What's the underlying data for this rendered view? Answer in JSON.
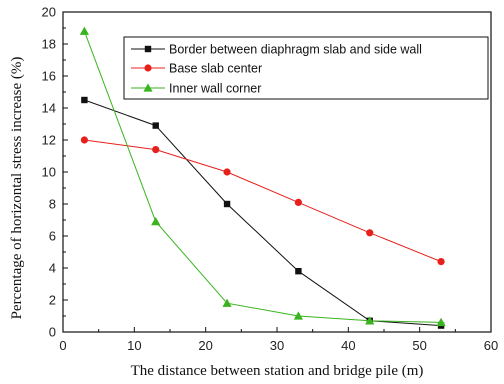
{
  "chart_data": {
    "type": "line",
    "xlabel": "The distance between station and bridge pile (m)",
    "ylabel": "Percentage of horizontal stress increase (%)",
    "xlim": [
      0,
      60
    ],
    "ylim": [
      0,
      20
    ],
    "xticks": [
      0,
      10,
      20,
      30,
      40,
      50,
      60
    ],
    "yticks": [
      0,
      2,
      4,
      6,
      8,
      10,
      12,
      14,
      16,
      18,
      20
    ],
    "grid": false,
    "legend_position": "top-right",
    "series": [
      {
        "name": "Border between diaphragm slab and side wall",
        "color": "#111111",
        "marker": "square",
        "x": [
          3,
          13,
          23,
          33,
          43,
          53
        ],
        "y": [
          14.5,
          12.9,
          8.0,
          3.8,
          0.7,
          0.4
        ]
      },
      {
        "name": "Base slab center",
        "color": "#e8201c",
        "marker": "circle",
        "x": [
          3,
          13,
          23,
          33,
          43,
          53
        ],
        "y": [
          12.0,
          11.4,
          10.0,
          8.1,
          6.2,
          4.4
        ]
      },
      {
        "name": "Inner wall corner",
        "color": "#39b41f",
        "marker": "triangle",
        "x": [
          3,
          13,
          23,
          33,
          43,
          53
        ],
        "y": [
          18.8,
          6.9,
          1.8,
          1.0,
          0.7,
          0.6
        ]
      }
    ]
  }
}
